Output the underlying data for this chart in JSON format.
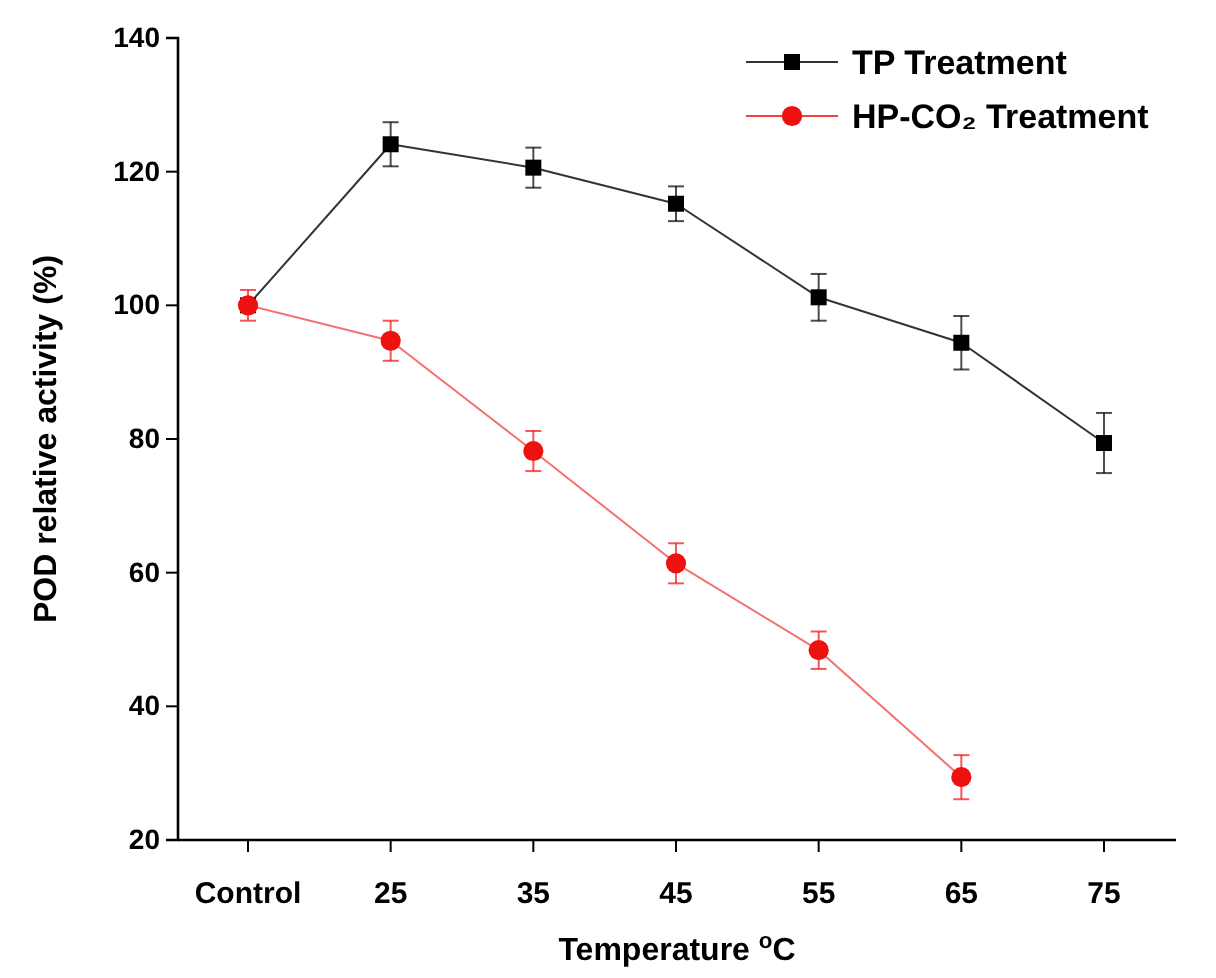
{
  "chart_data": {
    "type": "line",
    "xlabel": "Temperature $^{o}$C",
    "ylabel": "POD relative activity (%)",
    "categories": [
      "Control",
      "25",
      "35",
      "45",
      "55",
      "65",
      "75"
    ],
    "series": [
      {
        "name": "TP Treatment",
        "color": "#000000",
        "marker": "square",
        "values": [
          100,
          124.1,
          120.6,
          115.2,
          101.2,
          94.4,
          79.4
        ],
        "errors": [
          null,
          3.3,
          3,
          2.6,
          3.5,
          4,
          4.5
        ]
      },
      {
        "name": "HP-CO₂ Treatment",
        "color": "#ee1111",
        "marker": "circle",
        "values": [
          100,
          94.7,
          78.2,
          61.4,
          48.4,
          29.4,
          null
        ],
        "errors": [
          2.3,
          3,
          3,
          3,
          2.8,
          3.3,
          null
        ]
      }
    ],
    "ylim": [
      20,
      140
    ],
    "yticks": [
      20,
      40,
      60,
      80,
      100,
      120,
      140
    ],
    "legend": "top right",
    "grid": false,
    "line_style": "solid"
  }
}
